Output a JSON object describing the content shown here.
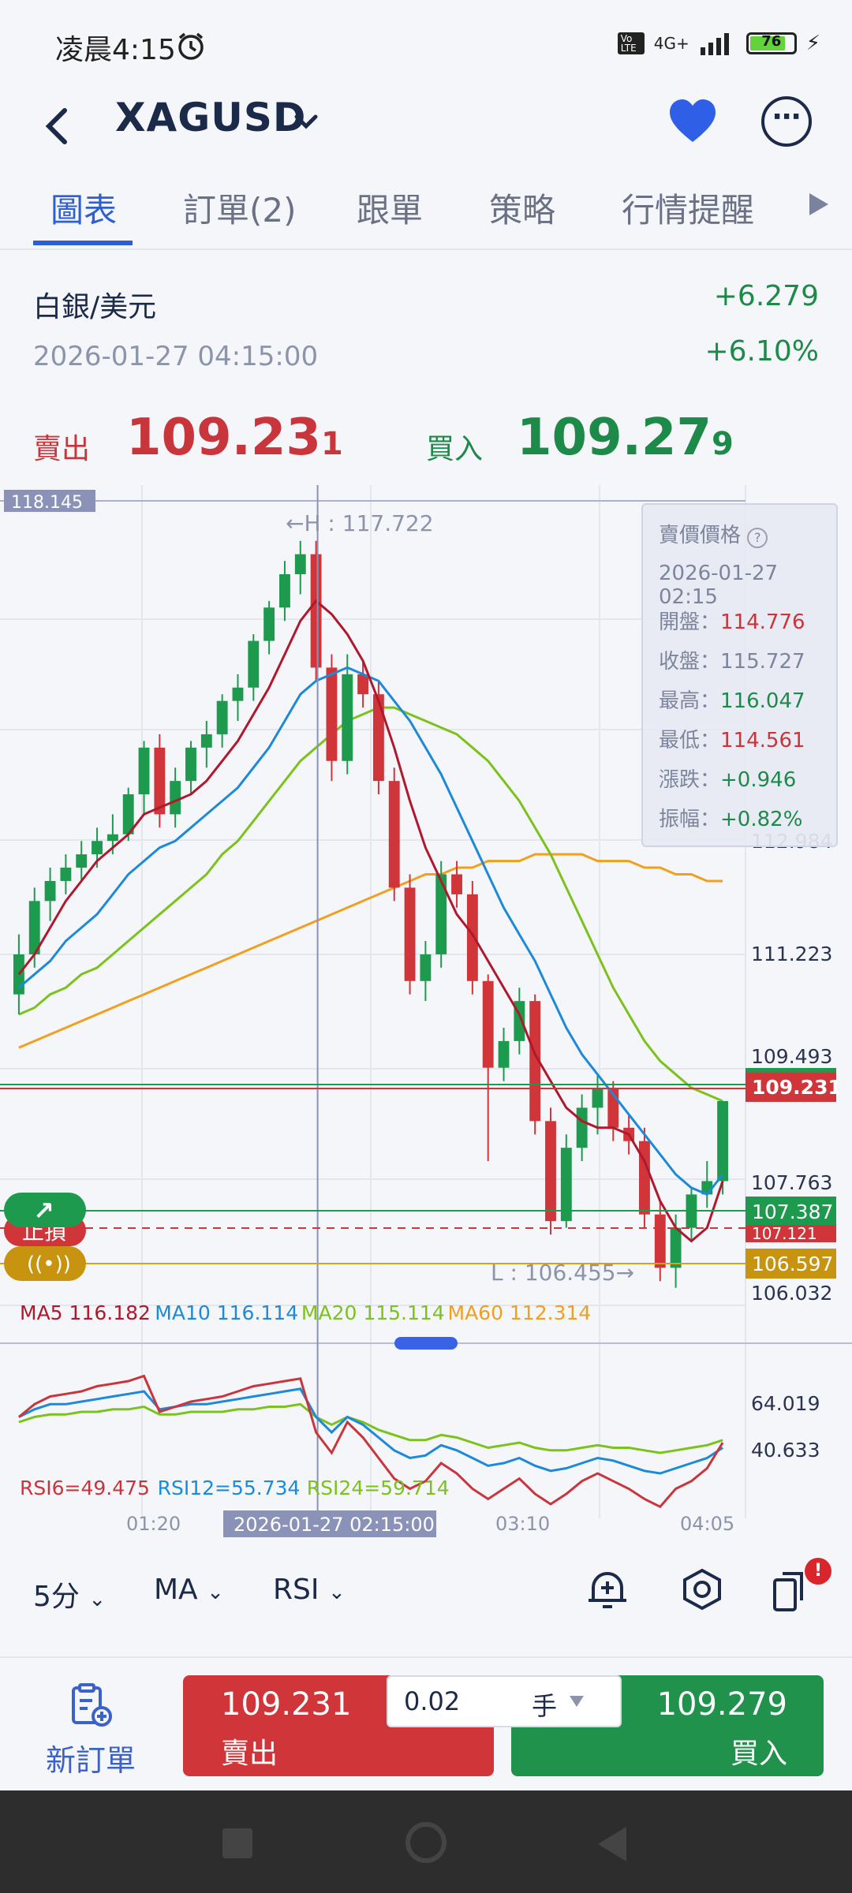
{
  "status": {
    "time": "凌晨4:15",
    "network": "4G+",
    "volte": "Vo LTE",
    "battery": "76"
  },
  "header": {
    "symbol": "XAGUSD"
  },
  "tabs": [
    {
      "label": "圖表"
    },
    {
      "label": "訂單(2)"
    },
    {
      "label": "跟單"
    },
    {
      "label": "策略"
    },
    {
      "label": "行情提醒"
    }
  ],
  "info": {
    "name": "白銀/美元",
    "timestamp": "2026-01-27 04:15:00",
    "change": "+6.279",
    "change_pct": "+6.10%"
  },
  "quote": {
    "sell_label": "賣出",
    "sell_main": "109.23",
    "sell_last": "1",
    "buy_label": "買入",
    "buy_main": "109.27",
    "buy_last": "9"
  },
  "tooltip": {
    "title": "賣價價格",
    "date": "2026-01-27 02:15",
    "open_label": "開盤：",
    "open": "114.776",
    "close_label": "收盤：",
    "close": "115.727",
    "high_label": "最高：",
    "high": "116.047",
    "low_label": "最低：",
    "low": "114.561",
    "change_label": "漲跌：",
    "change": "+0.946",
    "amp_label": "振幅：",
    "amp": "+0.82%"
  },
  "chart_data": {
    "type": "candlestick",
    "price_axis_ticks": [
      "112.984",
      "111.223",
      "109.493",
      "107.763",
      "106.032"
    ],
    "top_marker": "118.145",
    "high_annotation": "←H : 117.722",
    "low_annotation": "L : 106.455→",
    "current_price_tag": "109.231",
    "take_profit_tag": "107.387",
    "stop_loss_tag": "107.121",
    "order_line_tag": "106.597",
    "stop_loss_label": "止損",
    "x_ticks": [
      "01:20",
      "03:10",
      "04:05"
    ],
    "crosshair_time": "2026-01-27 02:15:00",
    "ma_legend": [
      {
        "name": "MA5",
        "value": "116.182",
        "color": "#b0182c"
      },
      {
        "name": "MA10",
        "value": "116.114",
        "color": "#1c8ad8"
      },
      {
        "name": "MA20",
        "value": "115.114",
        "color": "#7cc21c"
      },
      {
        "name": "MA60",
        "value": "112.314",
        "color": "#f0a020"
      }
    ],
    "rsi_ticks": [
      "64.019",
      "40.633"
    ],
    "rsi_legend": [
      {
        "name": "RSI6=49.475",
        "color": "#c8363c"
      },
      {
        "name": "RSI12=55.734",
        "color": "#1c8ad8"
      },
      {
        "name": "RSI24=59.714",
        "color": "#7cc21c"
      }
    ],
    "candles": [
      {
        "o": 110.9,
        "h": 111.8,
        "l": 110.6,
        "c": 111.5
      },
      {
        "o": 111.5,
        "h": 112.5,
        "l": 111.3,
        "c": 112.3
      },
      {
        "o": 112.3,
        "h": 112.8,
        "l": 112.0,
        "c": 112.6
      },
      {
        "o": 112.6,
        "h": 113.0,
        "l": 112.4,
        "c": 112.8
      },
      {
        "o": 112.8,
        "h": 113.2,
        "l": 112.6,
        "c": 113.0
      },
      {
        "o": 113.0,
        "h": 113.4,
        "l": 112.8,
        "c": 113.2
      },
      {
        "o": 113.2,
        "h": 113.6,
        "l": 113.0,
        "c": 113.3
      },
      {
        "o": 113.3,
        "h": 114.0,
        "l": 113.2,
        "c": 113.9
      },
      {
        "o": 113.9,
        "h": 114.7,
        "l": 113.6,
        "c": 114.6
      },
      {
        "o": 114.6,
        "h": 114.8,
        "l": 113.4,
        "c": 113.6
      },
      {
        "o": 113.6,
        "h": 114.3,
        "l": 113.4,
        "c": 114.1
      },
      {
        "o": 114.1,
        "h": 114.7,
        "l": 113.9,
        "c": 114.6
      },
      {
        "o": 114.6,
        "h": 115.0,
        "l": 114.3,
        "c": 114.8
      },
      {
        "o": 114.8,
        "h": 115.4,
        "l": 114.6,
        "c": 115.3
      },
      {
        "o": 115.3,
        "h": 115.7,
        "l": 115.0,
        "c": 115.5
      },
      {
        "o": 115.5,
        "h": 116.3,
        "l": 115.3,
        "c": 116.2
      },
      {
        "o": 116.2,
        "h": 116.8,
        "l": 116.0,
        "c": 116.7
      },
      {
        "o": 116.7,
        "h": 117.4,
        "l": 116.5,
        "c": 117.2
      },
      {
        "o": 117.2,
        "h": 117.7,
        "l": 116.9,
        "c": 117.5
      },
      {
        "o": 117.5,
        "h": 117.7,
        "l": 115.6,
        "c": 115.8
      },
      {
        "o": 115.8,
        "h": 116.0,
        "l": 114.1,
        "c": 114.4
      },
      {
        "o": 114.4,
        "h": 116.0,
        "l": 114.2,
        "c": 115.7
      },
      {
        "o": 115.7,
        "h": 115.9,
        "l": 115.2,
        "c": 115.4
      },
      {
        "o": 115.4,
        "h": 115.6,
        "l": 113.9,
        "c": 114.1
      },
      {
        "o": 114.1,
        "h": 114.3,
        "l": 112.3,
        "c": 112.5
      },
      {
        "o": 112.5,
        "h": 112.7,
        "l": 110.9,
        "c": 111.1
      },
      {
        "o": 111.1,
        "h": 111.7,
        "l": 110.8,
        "c": 111.5
      },
      {
        "o": 111.5,
        "h": 112.9,
        "l": 111.3,
        "c": 112.7
      },
      {
        "o": 112.7,
        "h": 112.9,
        "l": 112.2,
        "c": 112.4
      },
      {
        "o": 112.4,
        "h": 112.6,
        "l": 110.9,
        "c": 111.1
      },
      {
        "o": 111.1,
        "h": 111.2,
        "l": 108.4,
        "c": 109.8
      },
      {
        "o": 109.8,
        "h": 110.4,
        "l": 109.6,
        "c": 110.2
      },
      {
        "o": 110.2,
        "h": 111.0,
        "l": 110.0,
        "c": 110.8
      },
      {
        "o": 110.8,
        "h": 110.9,
        "l": 108.8,
        "c": 109.0
      },
      {
        "o": 109.0,
        "h": 109.2,
        "l": 107.3,
        "c": 107.5
      },
      {
        "o": 107.5,
        "h": 108.8,
        "l": 107.4,
        "c": 108.6
      },
      {
        "o": 108.6,
        "h": 109.4,
        "l": 108.4,
        "c": 109.2
      },
      {
        "o": 109.2,
        "h": 109.7,
        "l": 108.8,
        "c": 109.5
      },
      {
        "o": 109.5,
        "h": 109.6,
        "l": 108.7,
        "c": 108.9
      },
      {
        "o": 108.9,
        "h": 109.1,
        "l": 108.5,
        "c": 108.7
      },
      {
        "o": 108.7,
        "h": 108.9,
        "l": 107.4,
        "c": 107.6
      },
      {
        "o": 107.6,
        "h": 107.8,
        "l": 106.6,
        "c": 106.8
      },
      {
        "o": 106.8,
        "h": 107.6,
        "l": 106.5,
        "c": 107.4
      },
      {
        "o": 107.4,
        "h": 108.0,
        "l": 107.2,
        "c": 107.9
      },
      {
        "o": 107.9,
        "h": 108.4,
        "l": 107.7,
        "c": 108.1
      },
      {
        "o": 108.1,
        "h": 109.3,
        "l": 107.9,
        "c": 109.3
      }
    ],
    "ma5": [
      111.2,
      111.5,
      111.9,
      112.3,
      112.6,
      112.9,
      113.1,
      113.3,
      113.6,
      113.7,
      113.8,
      113.9,
      114.1,
      114.4,
      114.7,
      115.1,
      115.5,
      116.0,
      116.5,
      116.8,
      116.6,
      116.3,
      115.9,
      115.3,
      114.6,
      113.8,
      113.1,
      112.6,
      112.1,
      111.8,
      111.4,
      111.0,
      110.6,
      110.0,
      109.6,
      109.2,
      109.0,
      108.9,
      108.9,
      108.8,
      108.4,
      107.8,
      107.4,
      107.2,
      107.4,
      108.1
    ],
    "ma10": [
      111.0,
      111.2,
      111.4,
      111.7,
      111.9,
      112.1,
      112.4,
      112.7,
      112.9,
      113.1,
      113.2,
      113.4,
      113.6,
      113.8,
      114.0,
      114.3,
      114.6,
      115.0,
      115.4,
      115.6,
      115.7,
      115.8,
      115.7,
      115.6,
      115.3,
      115.0,
      114.6,
      114.2,
      113.7,
      113.2,
      112.7,
      112.2,
      111.8,
      111.4,
      110.9,
      110.4,
      110.0,
      109.7,
      109.4,
      109.1,
      108.8,
      108.5,
      108.2,
      108.0,
      107.9,
      108.2
    ],
    "ma20": [
      110.6,
      110.7,
      110.9,
      111.0,
      111.2,
      111.3,
      111.5,
      111.7,
      111.9,
      112.1,
      112.3,
      112.5,
      112.7,
      113.0,
      113.2,
      113.5,
      113.8,
      114.1,
      114.4,
      114.6,
      114.8,
      115.0,
      115.1,
      115.2,
      115.2,
      115.1,
      115.0,
      114.9,
      114.8,
      114.6,
      114.4,
      114.1,
      113.8,
      113.4,
      113.0,
      112.5,
      112.0,
      111.5,
      111.0,
      110.6,
      110.2,
      109.9,
      109.7,
      109.5,
      109.4,
      109.3
    ],
    "ma60": [
      110.1,
      110.2,
      110.3,
      110.4,
      110.5,
      110.6,
      110.7,
      110.8,
      110.9,
      111.0,
      111.1,
      111.2,
      111.3,
      111.4,
      111.5,
      111.6,
      111.7,
      111.8,
      111.9,
      112.0,
      112.1,
      112.2,
      112.3,
      112.4,
      112.5,
      112.6,
      112.7,
      112.7,
      112.8,
      112.8,
      112.9,
      112.9,
      112.9,
      113.0,
      113.0,
      113.0,
      113.0,
      112.9,
      112.9,
      112.9,
      112.8,
      112.8,
      112.7,
      112.7,
      112.6,
      112.6
    ],
    "rsi6": [
      58,
      63,
      66,
      67,
      68,
      70,
      71,
      72,
      74,
      60,
      62,
      64,
      65,
      66,
      68,
      70,
      71,
      72,
      73,
      52,
      44,
      56,
      50,
      42,
      34,
      30,
      33,
      40,
      36,
      30,
      26,
      30,
      34,
      28,
      24,
      28,
      33,
      36,
      33,
      30,
      26,
      23,
      30,
      33,
      38,
      48
    ],
    "rsi12": [
      58,
      61,
      63,
      63,
      64,
      65,
      66,
      67,
      68,
      61,
      62,
      63,
      63,
      64,
      65,
      66,
      67,
      68,
      69,
      58,
      52,
      58,
      55,
      50,
      45,
      42,
      43,
      47,
      45,
      42,
      39,
      40,
      42,
      39,
      37,
      38,
      40,
      42,
      41,
      39,
      37,
      36,
      38,
      40,
      42,
      46
    ],
    "rsi24": [
      56,
      58,
      59,
      59,
      60,
      60,
      61,
      61,
      62,
      59,
      59,
      60,
      60,
      60,
      61,
      61,
      62,
      62,
      63,
      58,
      55,
      58,
      56,
      53,
      51,
      49,
      49,
      51,
      50,
      48,
      46,
      47,
      48,
      46,
      45,
      45,
      46,
      47,
      46,
      46,
      45,
      44,
      45,
      46,
      47,
      49
    ]
  },
  "toolbar": {
    "period": "5分",
    "indicator": "MA",
    "sub_indicator": "RSI",
    "badge": "!"
  },
  "order": {
    "new_order_label": "新訂單",
    "sell_price": "109.231",
    "sell_label": "賣出",
    "qty": "0.02",
    "unit": "手",
    "buy_price": "109.279",
    "buy_label": "買入"
  }
}
